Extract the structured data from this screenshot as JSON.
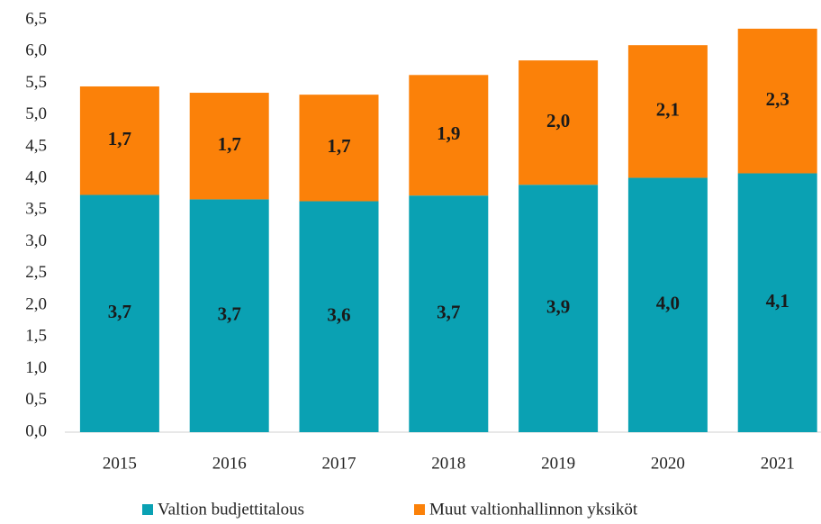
{
  "chart_data": {
    "type": "stacked_bar",
    "categories": [
      "2015",
      "2016",
      "2017",
      "2018",
      "2019",
      "2020",
      "2021"
    ],
    "series": [
      {
        "name": "Valtion budjettitalous",
        "color": "#0aa1b3",
        "values": [
          3.74,
          3.67,
          3.64,
          3.73,
          3.9,
          4.01,
          4.08
        ],
        "value_labels": [
          "3,7",
          "3,7",
          "3,6",
          "3,7",
          "3,9",
          "4,0",
          "4,1"
        ]
      },
      {
        "name": "Muut valtionhallinnon yksiköt",
        "color": "#fb8109",
        "values": [
          1.71,
          1.68,
          1.68,
          1.9,
          1.96,
          2.09,
          2.28
        ],
        "value_labels": [
          "1,7",
          "1,7",
          "1,7",
          "1,9",
          "2,0",
          "2,1",
          "2,3"
        ]
      }
    ],
    "ylim": [
      0,
      6.5
    ],
    "yticks": [
      {
        "value": 0,
        "label": "0,0"
      },
      {
        "value": 0.5,
        "label": "0,5"
      },
      {
        "value": 1,
        "label": "1,0"
      },
      {
        "value": 1.5,
        "label": "1,5"
      },
      {
        "value": 2,
        "label": "2,0"
      },
      {
        "value": 2.5,
        "label": "2,5"
      },
      {
        "value": 3,
        "label": "3,0"
      },
      {
        "value": 3.5,
        "label": "3,5"
      },
      {
        "value": 4,
        "label": "4,0"
      },
      {
        "value": 4.5,
        "label": "4,5"
      },
      {
        "value": 5,
        "label": "5,0"
      },
      {
        "value": 5.5,
        "label": "5,5"
      },
      {
        "value": 6,
        "label": "6,0"
      },
      {
        "value": 6.5,
        "label": "6,5"
      }
    ],
    "legend": "bottom"
  }
}
